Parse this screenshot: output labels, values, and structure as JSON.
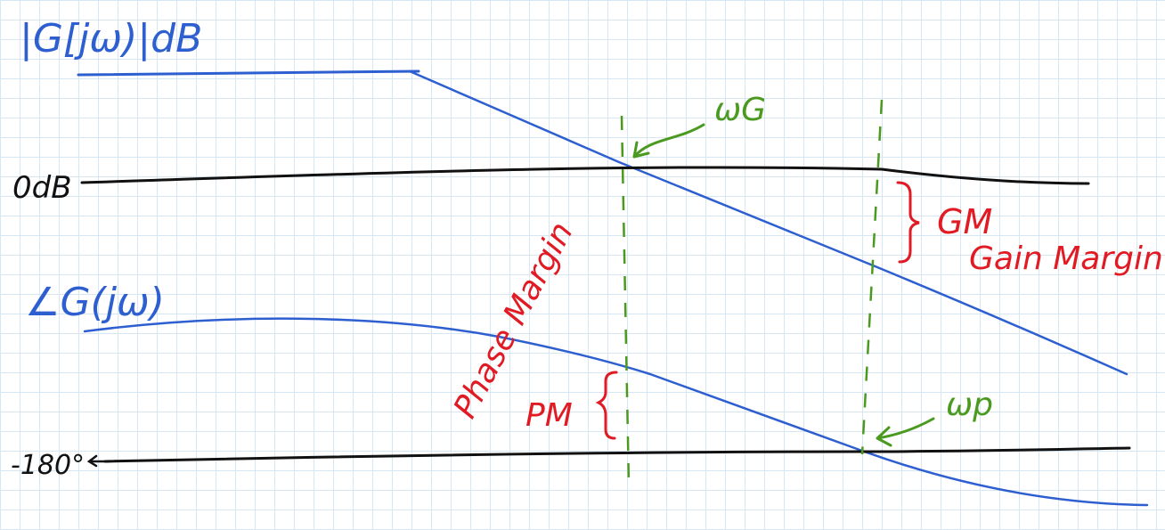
{
  "labels": {
    "magnitude_axis": "|G[jω)|dB",
    "zero_db": "0dB",
    "phase_axis": "∠G(jω)",
    "minus_180": "-180°",
    "omega_g": "ωG",
    "omega_p": "ωp",
    "gm_short": "GM",
    "gm_long": "Gain Margin",
    "pm_short": "PM",
    "pm_long": "Phase Margin"
  },
  "colors": {
    "axis_ink": "#111111",
    "curve_ink": "#2e5fd0",
    "frequency_ink": "#4a9a1f",
    "margin_ink": "#e01b24",
    "grid": "#d6e6f2"
  }
}
